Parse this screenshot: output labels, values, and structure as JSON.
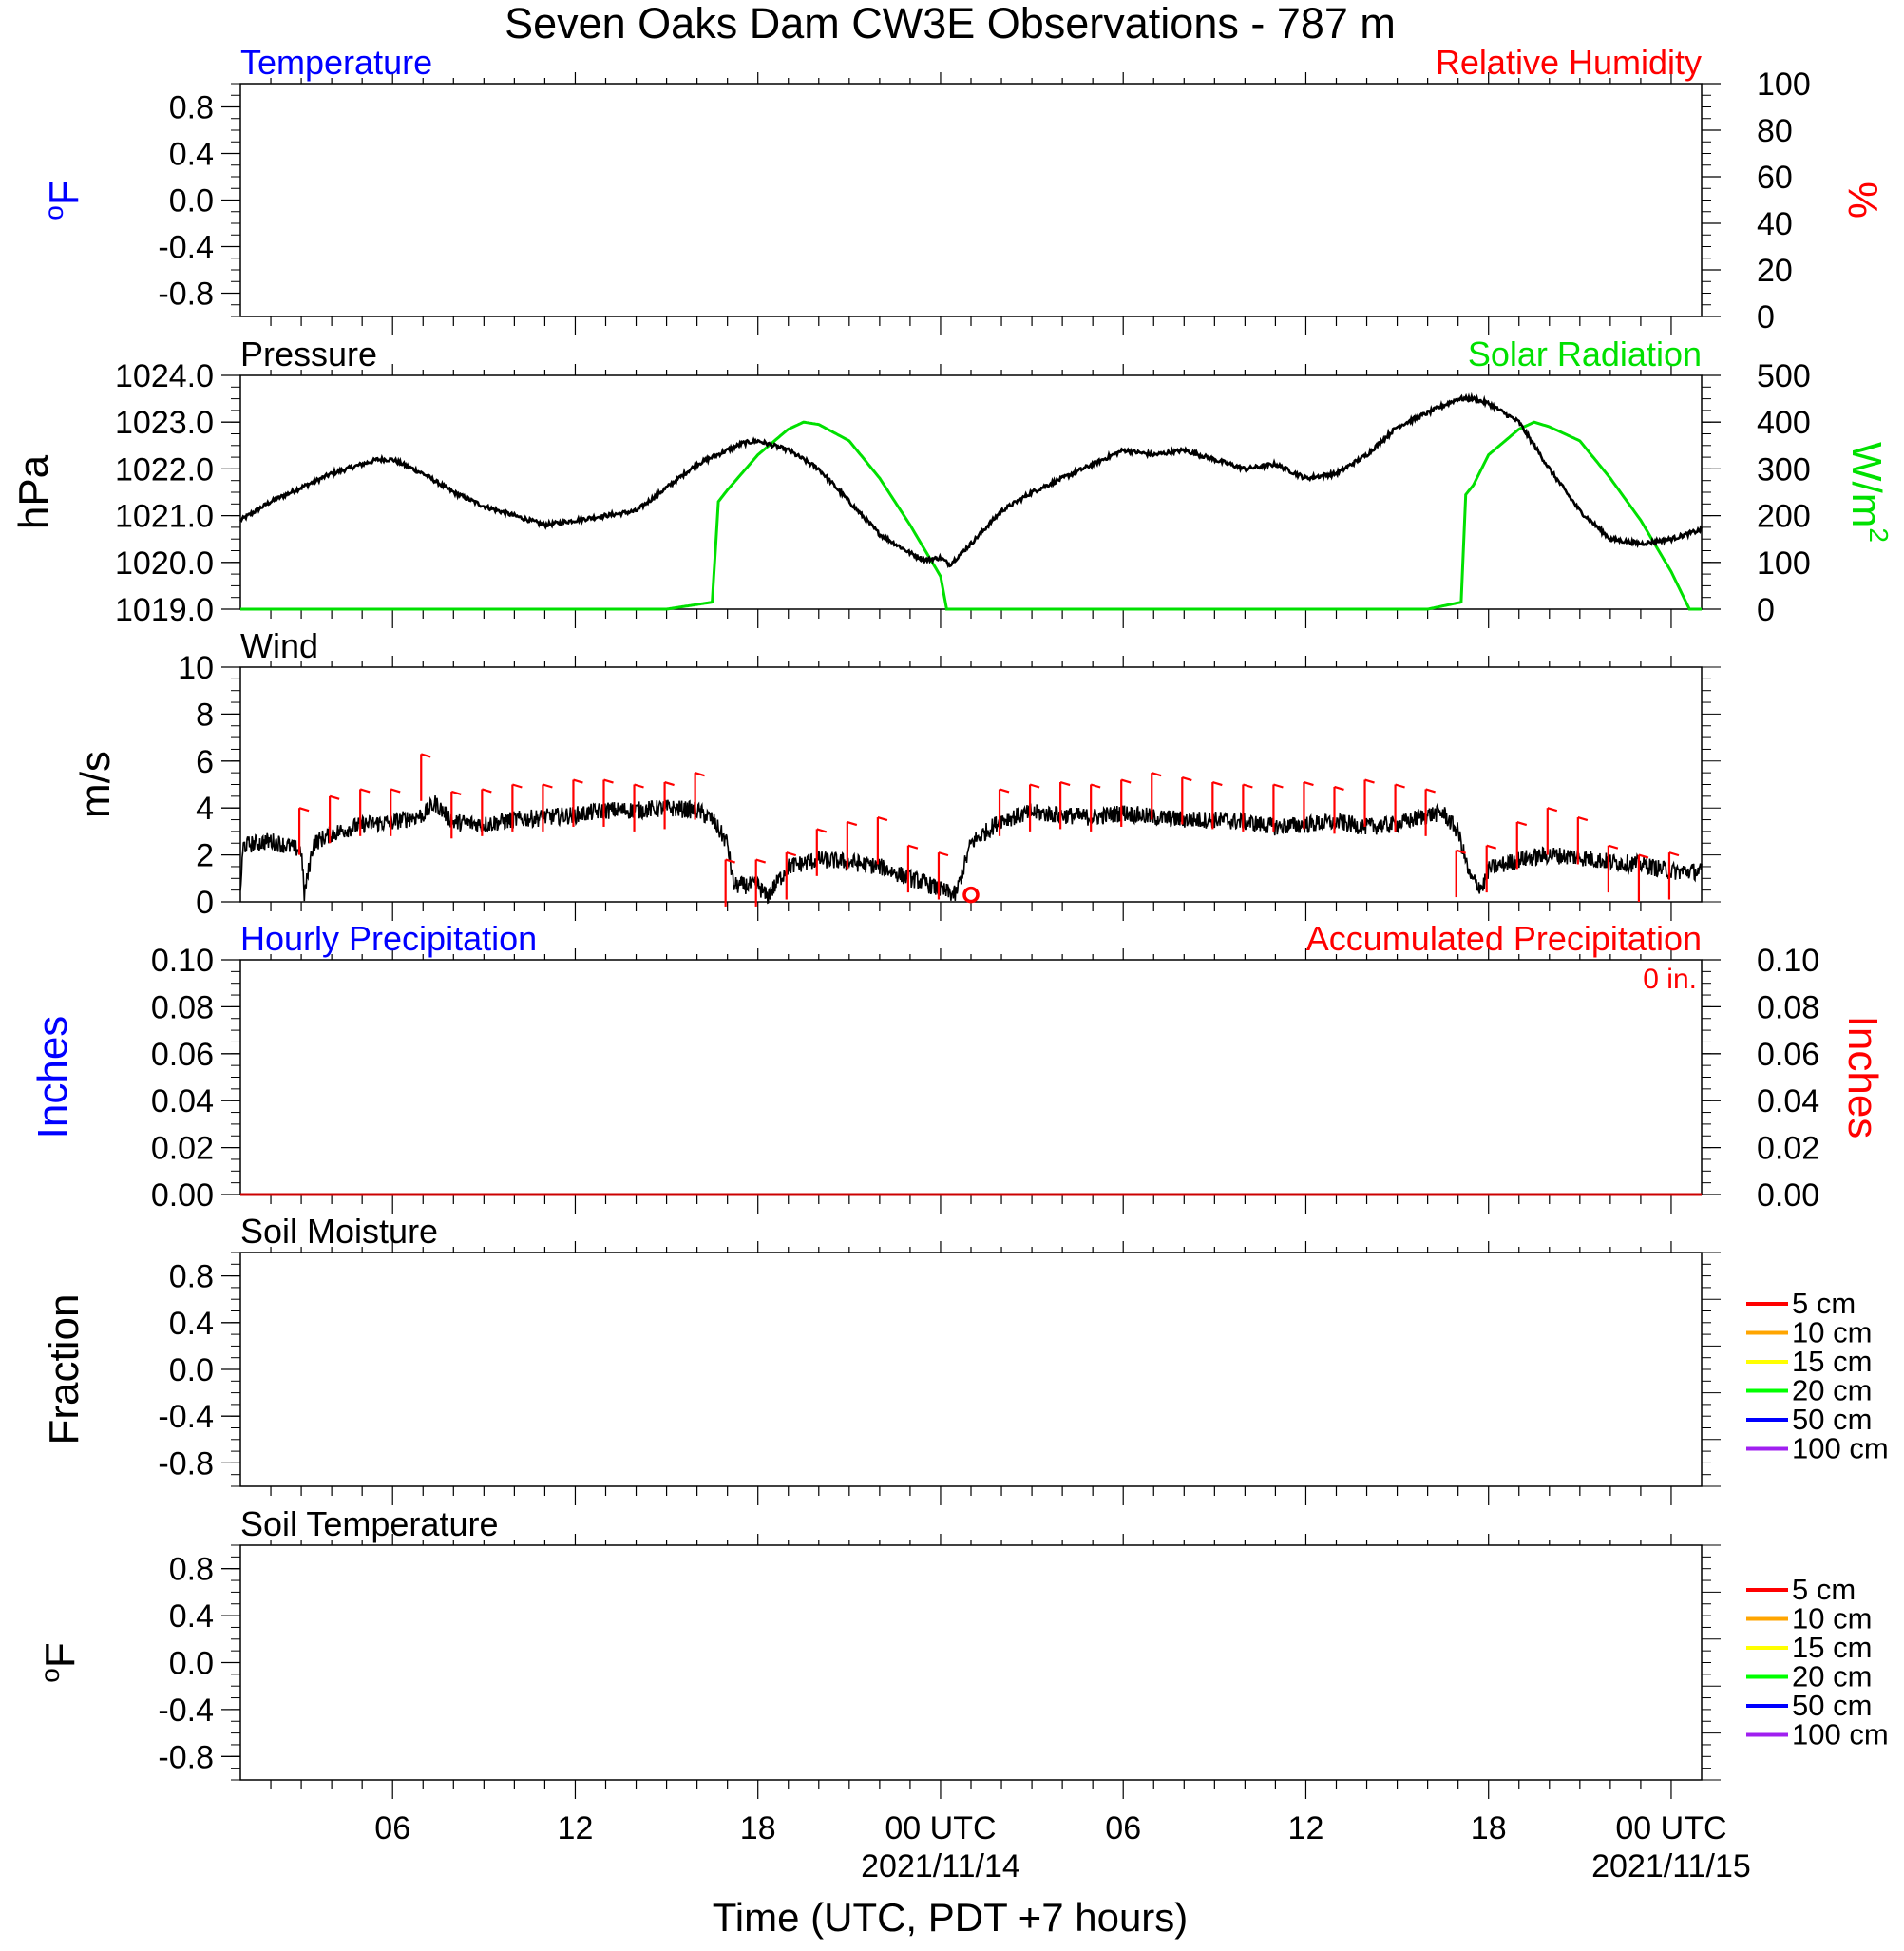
{
  "title": "Seven Oaks Dam CW3E Observations - 787 m",
  "xlabel": "Time (UTC, PDT +7 hours)",
  "time_axis": {
    "range_hours": [
      1,
      49
    ],
    "tick_labels": [
      {
        "hour": 6,
        "line1": "06",
        "line2": ""
      },
      {
        "hour": 12,
        "line1": "12",
        "line2": ""
      },
      {
        "hour": 18,
        "line1": "18",
        "line2": ""
      },
      {
        "hour": 24,
        "line1": "00 UTC",
        "line2": "2021/11/14"
      },
      {
        "hour": 30,
        "line1": "06",
        "line2": ""
      },
      {
        "hour": 36,
        "line1": "12",
        "line2": ""
      },
      {
        "hour": 42,
        "line1": "18",
        "line2": ""
      },
      {
        "hour": 48,
        "line1": "00 UTC",
        "line2": "2021/11/15"
      }
    ]
  },
  "chart_data": [
    {
      "id": "temperature",
      "type": "line",
      "title_left": "Temperature",
      "title_right": "Relative Humidity",
      "ylabel_left": "oF",
      "ylabel_right": "%",
      "ylim_left": [
        -1,
        1
      ],
      "ylim_right": [
        0,
        100
      ],
      "yticks_left": [
        "0.8",
        "0.4",
        "0.0",
        "-0.4",
        "-0.8"
      ],
      "yticks_right": [
        "100",
        "80",
        "60",
        "40",
        "20",
        "0"
      ],
      "series": [],
      "colors": {
        "left": "#0000ff",
        "right": "#ff0000"
      }
    },
    {
      "id": "pressure",
      "type": "line",
      "title_left": "Pressure",
      "title_right": "Solar Radiation",
      "ylabel_left": "hPa",
      "ylabel_right": "W/m2",
      "ylim_left": [
        1019,
        1024
      ],
      "ylim_right": [
        0,
        500
      ],
      "yticks_left": [
        "1024.0",
        "1023.0",
        "1022.0",
        "1021.0",
        "1020.0",
        "1019.0"
      ],
      "yticks_right": [
        "500",
        "400",
        "300",
        "200",
        "100",
        "0"
      ],
      "pressure": {
        "x": [
          1,
          2,
          3,
          4,
          5,
          5.5,
          6,
          7,
          8,
          9,
          10,
          11,
          12,
          13,
          14,
          15,
          16,
          17,
          17.5,
          18,
          19,
          20,
          21,
          22,
          23,
          23.5,
          24,
          24.3,
          25,
          26,
          27,
          28,
          29,
          30,
          31,
          32,
          33,
          34,
          35,
          36,
          37,
          38,
          39,
          40,
          41,
          41.5,
          42,
          43,
          44,
          45,
          46,
          47,
          48,
          49
        ],
        "y": [
          1020.9,
          1021.3,
          1021.6,
          1021.9,
          1022.1,
          1022.2,
          1022.2,
          1021.9,
          1021.5,
          1021.2,
          1021.0,
          1020.8,
          1020.9,
          1021.0,
          1021.1,
          1021.6,
          1022.1,
          1022.4,
          1022.55,
          1022.6,
          1022.4,
          1022.0,
          1021.3,
          1020.6,
          1020.2,
          1020.05,
          1020.1,
          1019.95,
          1020.4,
          1021.1,
          1021.5,
          1021.8,
          1022.1,
          1022.4,
          1022.3,
          1022.4,
          1022.2,
          1022.0,
          1022.1,
          1021.8,
          1021.9,
          1022.3,
          1022.9,
          1023.2,
          1023.5,
          1023.5,
          1023.4,
          1023.0,
          1022.0,
          1021.1,
          1020.5,
          1020.4,
          1020.5,
          1020.7
        ]
      },
      "solar_radiation": {
        "x": [
          1,
          15,
          16.5,
          16.7,
          17,
          18,
          19,
          19.5,
          20,
          21,
          22,
          23,
          24,
          24.2,
          25,
          40,
          41.1,
          41.25,
          41.5,
          42,
          43,
          43.5,
          44,
          45,
          46,
          47,
          48,
          48.6,
          49
        ],
        "y": [
          0,
          0,
          15,
          230,
          255,
          330,
          385,
          400,
          395,
          360,
          280,
          180,
          70,
          0,
          0,
          0,
          15,
          245,
          265,
          330,
          385,
          400,
          390,
          360,
          280,
          190,
          80,
          0,
          0
        ]
      },
      "colors": {
        "pressure": "#000000",
        "solar": "#00e000"
      }
    },
    {
      "id": "wind",
      "type": "line",
      "title_left": "Wind",
      "ylabel_left": "m/s",
      "ylim_left": [
        0,
        10
      ],
      "yticks_left": [
        "10",
        "8",
        "6",
        "4",
        "2",
        "0"
      ],
      "speed": {
        "x": [
          1,
          1.1,
          2,
          3,
          3.1,
          3.4,
          4,
          5,
          6,
          7,
          7.4,
          8,
          9,
          10,
          11,
          12,
          13,
          14,
          15,
          16,
          16.5,
          17,
          17.2,
          18,
          18.3,
          19,
          20,
          21,
          22,
          23,
          23.5,
          24,
          24.5,
          25,
          26,
          27,
          28,
          29,
          30,
          31,
          32,
          33,
          34,
          35,
          36,
          37,
          38,
          39,
          40,
          40.5,
          41,
          41.4,
          41.8,
          42,
          43,
          44,
          45,
          46,
          47,
          48,
          49
        ],
        "y": [
          0.5,
          2.4,
          2.6,
          2.2,
          0.3,
          2.5,
          2.9,
          3.3,
          3.4,
          3.7,
          4.2,
          3.4,
          3.3,
          3.5,
          3.6,
          3.7,
          3.9,
          3.9,
          4.0,
          3.9,
          3.5,
          2.5,
          0.7,
          0.7,
          0.2,
          1.5,
          1.8,
          1.7,
          1.5,
          1.0,
          0.8,
          0.5,
          0.3,
          2.5,
          3.5,
          3.8,
          3.7,
          3.6,
          3.8,
          3.6,
          3.5,
          3.5,
          3.4,
          3.2,
          3.3,
          3.4,
          3.2,
          3.3,
          3.7,
          3.8,
          3.0,
          1.0,
          0.6,
          1.4,
          1.8,
          2.0,
          1.9,
          1.7,
          1.6,
          1.3,
          1.3
        ]
      },
      "barbs": {
        "x": [
          3,
          4,
          5,
          6,
          7,
          8,
          9,
          10,
          11,
          12,
          13,
          14,
          15,
          16,
          17,
          18,
          19,
          20,
          21,
          22,
          23,
          24,
          26,
          27,
          28,
          29,
          30,
          31,
          32,
          33,
          34,
          35,
          36,
          37,
          38,
          39,
          40,
          41,
          42,
          43,
          44,
          45,
          46,
          47,
          48
        ],
        "y": [
          4.0,
          4.5,
          4.8,
          4.8,
          6.3,
          4.7,
          4.8,
          5.0,
          5.0,
          5.2,
          5.2,
          5.0,
          5.1,
          5.5,
          1.8,
          1.8,
          2.1,
          3.1,
          3.4,
          3.6,
          2.4,
          2.1,
          4.8,
          5.0,
          5.1,
          5.0,
          5.2,
          5.5,
          5.3,
          5.1,
          5.0,
          5.0,
          5.1,
          4.9,
          5.2,
          5.0,
          4.8,
          2.2,
          2.4,
          3.4,
          4.0,
          3.6,
          2.4,
          2.0,
          2.1
        ]
      },
      "calm_marker": {
        "x": 25,
        "y": 0.3
      },
      "colors": {
        "speed": "#000000",
        "barbs": "#ff0000"
      }
    },
    {
      "id": "precipitation",
      "type": "line",
      "title_left": "Hourly Precipitation",
      "title_right": "Accumulated Precipitation",
      "accum_label": "0 in.",
      "ylabel_left": "Inches",
      "ylabel_right": "Inches",
      "ylim_left": [
        0,
        0.1
      ],
      "ylim_right": [
        0,
        0.1
      ],
      "yticks_left": [
        "0.10",
        "0.08",
        "0.06",
        "0.04",
        "0.02",
        "0.00"
      ],
      "yticks_right": [
        "0.10",
        "0.08",
        "0.06",
        "0.04",
        "0.02",
        "0.00"
      ],
      "series": [
        {
          "x": [
            1,
            49
          ],
          "y": [
            0,
            0
          ]
        }
      ],
      "colors": {
        "left": "#0000ff",
        "right": "#ff0000"
      }
    },
    {
      "id": "soil_moisture",
      "type": "line",
      "title_left": "Soil Moisture",
      "ylabel_left": "Fraction",
      "ylim_left": [
        -1,
        1
      ],
      "yticks_left": [
        "0.8",
        "0.4",
        "0.0",
        "-0.4",
        "-0.8"
      ],
      "legend": [
        {
          "label": "5 cm",
          "color": "#ff0000"
        },
        {
          "label": "10 cm",
          "color": "#ffa500"
        },
        {
          "label": "15 cm",
          "color": "#ffff00"
        },
        {
          "label": "20 cm",
          "color": "#00ff00"
        },
        {
          "label": "50 cm",
          "color": "#0000ff"
        },
        {
          "label": "100 cm",
          "color": "#a020f0"
        }
      ],
      "series": []
    },
    {
      "id": "soil_temperature",
      "type": "line",
      "title_left": "Soil Temperature",
      "ylabel_left": "oF",
      "ylim_left": [
        -1,
        1
      ],
      "yticks_left": [
        "0.8",
        "0.4",
        "0.0",
        "-0.4",
        "-0.8"
      ],
      "legend": [
        {
          "label": "5 cm",
          "color": "#ff0000"
        },
        {
          "label": "10 cm",
          "color": "#ffa500"
        },
        {
          "label": "15 cm",
          "color": "#ffff00"
        },
        {
          "label": "20 cm",
          "color": "#00ff00"
        },
        {
          "label": "50 cm",
          "color": "#0000ff"
        },
        {
          "label": "100 cm",
          "color": "#a020f0"
        }
      ],
      "series": []
    }
  ]
}
